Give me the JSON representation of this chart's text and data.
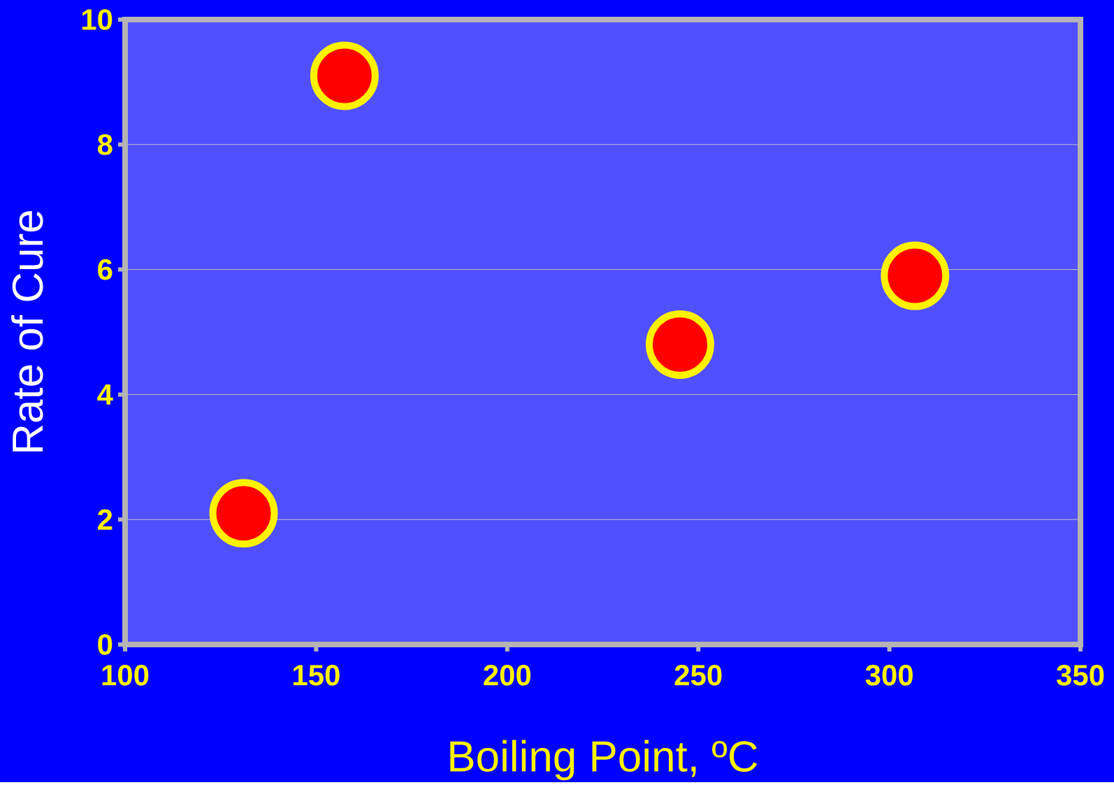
{
  "chart_data": {
    "type": "scatter",
    "x": [
      131,
      157.4,
      245.2,
      306.7
    ],
    "values": [
      2.1,
      9.1,
      4.8,
      5.9
    ],
    "color": "#ff0000",
    "xlabel": "Boiling Point, ºC",
    "ylabel": "Rate of Cure",
    "xlim": [
      100,
      350
    ],
    "xticks": [
      100,
      150,
      200,
      250,
      300,
      350
    ],
    "ylim": [
      0,
      10
    ],
    "yticks": [
      0,
      2,
      4,
      6,
      8,
      10
    ],
    "grid": "y"
  }
}
